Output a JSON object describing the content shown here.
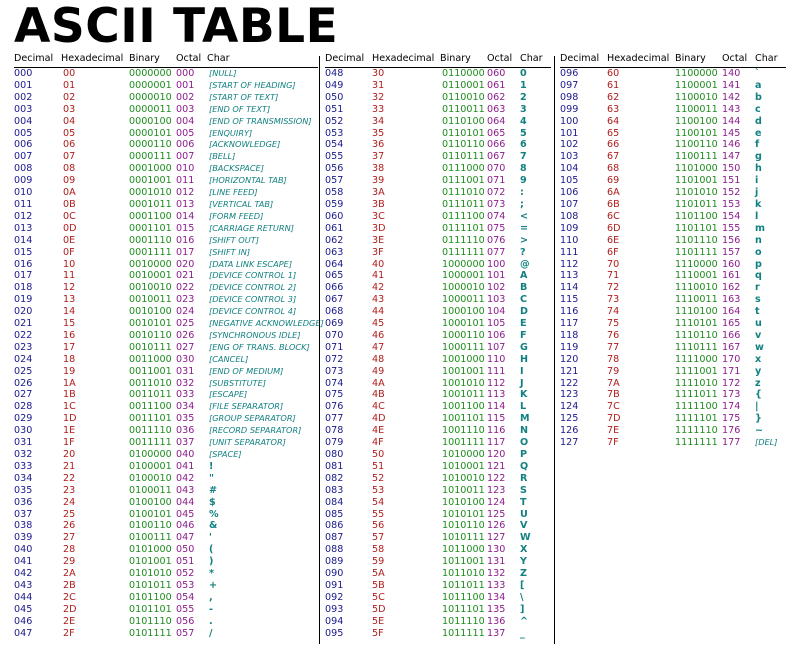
{
  "title": "ASCII TABLE",
  "headers": {
    "decimal": "Decimal",
    "hex": "Hexadecimal",
    "binary": "Binary",
    "octal": "Octal",
    "char": "Char"
  },
  "columns": [
    [
      [
        "000",
        "00",
        "0000000",
        "000",
        "[NULL]"
      ],
      [
        "001",
        "01",
        "0000001",
        "001",
        "[START OF HEADING]"
      ],
      [
        "002",
        "02",
        "0000010",
        "002",
        "[START OF TEXT]"
      ],
      [
        "003",
        "03",
        "0000011",
        "003",
        "[END OF TEXT]"
      ],
      [
        "004",
        "04",
        "0000100",
        "004",
        "[END OF TRANSMISSION]"
      ],
      [
        "005",
        "05",
        "0000101",
        "005",
        "[ENQUIRY]"
      ],
      [
        "006",
        "06",
        "0000110",
        "006",
        "[ACKNOWLEDGE]"
      ],
      [
        "007",
        "07",
        "0000111",
        "007",
        "[BELL]"
      ],
      [
        "008",
        "08",
        "0001000",
        "010",
        "[BACKSPACE]"
      ],
      [
        "009",
        "09",
        "0001001",
        "011",
        "[HORIZONTAL TAB]"
      ],
      [
        "010",
        "0A",
        "0001010",
        "012",
        "[LINE FEED]"
      ],
      [
        "011",
        "0B",
        "0001011",
        "013",
        "[VERTICAL TAB]"
      ],
      [
        "012",
        "0C",
        "0001100",
        "014",
        "[FORM FEED]"
      ],
      [
        "013",
        "0D",
        "0001101",
        "015",
        "[CARRIAGE RETURN]"
      ],
      [
        "014",
        "0E",
        "0001110",
        "016",
        "[SHIFT OUT]"
      ],
      [
        "015",
        "0F",
        "0001111",
        "017",
        "[SHIFT IN]"
      ],
      [
        "016",
        "10",
        "0010000",
        "020",
        "[DATA LINK ESCAPE]"
      ],
      [
        "017",
        "11",
        "0010001",
        "021",
        "[DEVICE CONTROL 1]"
      ],
      [
        "018",
        "12",
        "0010010",
        "022",
        "[DEVICE CONTROL 2]"
      ],
      [
        "019",
        "13",
        "0010011",
        "023",
        "[DEVICE CONTROL 3]"
      ],
      [
        "020",
        "14",
        "0010100",
        "024",
        "[DEVICE CONTROL 4]"
      ],
      [
        "021",
        "15",
        "0010101",
        "025",
        "[NEGATIVE ACKNOWLEDGE]"
      ],
      [
        "022",
        "16",
        "0010110",
        "026",
        "[SYNCHRONOUS IDLE]"
      ],
      [
        "023",
        "17",
        "0010111",
        "027",
        "[ENG OF TRANS. BLOCK]"
      ],
      [
        "024",
        "18",
        "0011000",
        "030",
        "[CANCEL]"
      ],
      [
        "025",
        "19",
        "0011001",
        "031",
        "[END OF MEDIUM]"
      ],
      [
        "026",
        "1A",
        "0011010",
        "032",
        "[SUBSTITUTE]"
      ],
      [
        "027",
        "1B",
        "0011011",
        "033",
        "[ESCAPE]"
      ],
      [
        "028",
        "1C",
        "0011100",
        "034",
        "[FILE SEPARATOR]"
      ],
      [
        "029",
        "1D",
        "0011101",
        "035",
        "[GROUP SEPARATOR]"
      ],
      [
        "030",
        "1E",
        "0011110",
        "036",
        "[RECORD SEPARATOR]"
      ],
      [
        "031",
        "1F",
        "0011111",
        "037",
        "[UNIT SEPARATOR]"
      ],
      [
        "032",
        "20",
        "0100000",
        "040",
        "[SPACE]"
      ],
      [
        "033",
        "21",
        "0100001",
        "041",
        "!"
      ],
      [
        "034",
        "22",
        "0100010",
        "042",
        "\""
      ],
      [
        "035",
        "23",
        "0100011",
        "043",
        "#"
      ],
      [
        "036",
        "24",
        "0100100",
        "044",
        "$"
      ],
      [
        "037",
        "25",
        "0100101",
        "045",
        "%"
      ],
      [
        "038",
        "26",
        "0100110",
        "046",
        "&"
      ],
      [
        "039",
        "27",
        "0100111",
        "047",
        "'"
      ],
      [
        "040",
        "28",
        "0101000",
        "050",
        "("
      ],
      [
        "041",
        "29",
        "0101001",
        "051",
        ")"
      ],
      [
        "042",
        "2A",
        "0101010",
        "052",
        "*"
      ],
      [
        "043",
        "2B",
        "0101011",
        "053",
        "+"
      ],
      [
        "044",
        "2C",
        "0101100",
        "054",
        ","
      ],
      [
        "045",
        "2D",
        "0101101",
        "055",
        "-"
      ],
      [
        "046",
        "2E",
        "0101110",
        "056",
        "."
      ],
      [
        "047",
        "2F",
        "0101111",
        "057",
        "/"
      ]
    ],
    [
      [
        "048",
        "30",
        "0110000",
        "060",
        "0"
      ],
      [
        "049",
        "31",
        "0110001",
        "061",
        "1"
      ],
      [
        "050",
        "32",
        "0110010",
        "062",
        "2"
      ],
      [
        "051",
        "33",
        "0110011",
        "063",
        "3"
      ],
      [
        "052",
        "34",
        "0110100",
        "064",
        "4"
      ],
      [
        "053",
        "35",
        "0110101",
        "065",
        "5"
      ],
      [
        "054",
        "36",
        "0110110",
        "066",
        "6"
      ],
      [
        "055",
        "37",
        "0110111",
        "067",
        "7"
      ],
      [
        "056",
        "38",
        "0111000",
        "070",
        "8"
      ],
      [
        "057",
        "39",
        "0111001",
        "071",
        "9"
      ],
      [
        "058",
        "3A",
        "0111010",
        "072",
        ":"
      ],
      [
        "059",
        "3B",
        "0111011",
        "073",
        ";"
      ],
      [
        "060",
        "3C",
        "0111100",
        "074",
        "<"
      ],
      [
        "061",
        "3D",
        "0111101",
        "075",
        "="
      ],
      [
        "062",
        "3E",
        "0111110",
        "076",
        ">"
      ],
      [
        "063",
        "3F",
        "0111111",
        "077",
        "?"
      ],
      [
        "064",
        "40",
        "1000000",
        "100",
        "@"
      ],
      [
        "065",
        "41",
        "1000001",
        "101",
        "A"
      ],
      [
        "066",
        "42",
        "1000010",
        "102",
        "B"
      ],
      [
        "067",
        "43",
        "1000011",
        "103",
        "C"
      ],
      [
        "068",
        "44",
        "1000100",
        "104",
        "D"
      ],
      [
        "069",
        "45",
        "1000101",
        "105",
        "E"
      ],
      [
        "070",
        "46",
        "1000110",
        "106",
        "F"
      ],
      [
        "071",
        "47",
        "1000111",
        "107",
        "G"
      ],
      [
        "072",
        "48",
        "1001000",
        "110",
        "H"
      ],
      [
        "073",
        "49",
        "1001001",
        "111",
        "I"
      ],
      [
        "074",
        "4A",
        "1001010",
        "112",
        "J"
      ],
      [
        "075",
        "4B",
        "1001011",
        "113",
        "K"
      ],
      [
        "076",
        "4C",
        "1001100",
        "114",
        "L"
      ],
      [
        "077",
        "4D",
        "1001101",
        "115",
        "M"
      ],
      [
        "078",
        "4E",
        "1001110",
        "116",
        "N"
      ],
      [
        "079",
        "4F",
        "1001111",
        "117",
        "O"
      ],
      [
        "080",
        "50",
        "1010000",
        "120",
        "P"
      ],
      [
        "081",
        "51",
        "1010001",
        "121",
        "Q"
      ],
      [
        "082",
        "52",
        "1010010",
        "122",
        "R"
      ],
      [
        "083",
        "53",
        "1010011",
        "123",
        "S"
      ],
      [
        "084",
        "54",
        "1010100",
        "124",
        "T"
      ],
      [
        "085",
        "55",
        "1010101",
        "125",
        "U"
      ],
      [
        "086",
        "56",
        "1010110",
        "126",
        "V"
      ],
      [
        "087",
        "57",
        "1010111",
        "127",
        "W"
      ],
      [
        "088",
        "58",
        "1011000",
        "130",
        "X"
      ],
      [
        "089",
        "59",
        "1011001",
        "131",
        "Y"
      ],
      [
        "090",
        "5A",
        "1011010",
        "132",
        "Z"
      ],
      [
        "091",
        "5B",
        "1011011",
        "133",
        "["
      ],
      [
        "092",
        "5C",
        "1011100",
        "134",
        "\\"
      ],
      [
        "093",
        "5D",
        "1011101",
        "135",
        "]"
      ],
      [
        "094",
        "5E",
        "1011110",
        "136",
        "^"
      ],
      [
        "095",
        "5F",
        "1011111",
        "137",
        "_"
      ]
    ],
    [
      [
        "096",
        "60",
        "1100000",
        "140",
        "`"
      ],
      [
        "097",
        "61",
        "1100001",
        "141",
        "a"
      ],
      [
        "098",
        "62",
        "1100010",
        "142",
        "b"
      ],
      [
        "099",
        "63",
        "1100011",
        "143",
        "c"
      ],
      [
        "100",
        "64",
        "1100100",
        "144",
        "d"
      ],
      [
        "101",
        "65",
        "1100101",
        "145",
        "e"
      ],
      [
        "102",
        "66",
        "1100110",
        "146",
        "f"
      ],
      [
        "103",
        "67",
        "1100111",
        "147",
        "g"
      ],
      [
        "104",
        "68",
        "1101000",
        "150",
        "h"
      ],
      [
        "105",
        "69",
        "1101001",
        "151",
        "i"
      ],
      [
        "106",
        "6A",
        "1101010",
        "152",
        "j"
      ],
      [
        "107",
        "6B",
        "1101011",
        "153",
        "k"
      ],
      [
        "108",
        "6C",
        "1101100",
        "154",
        "l"
      ],
      [
        "109",
        "6D",
        "1101101",
        "155",
        "m"
      ],
      [
        "110",
        "6E",
        "1101110",
        "156",
        "n"
      ],
      [
        "111",
        "6F",
        "1101111",
        "157",
        "o"
      ],
      [
        "112",
        "70",
        "1110000",
        "160",
        "p"
      ],
      [
        "113",
        "71",
        "1110001",
        "161",
        "q"
      ],
      [
        "114",
        "72",
        "1110010",
        "162",
        "r"
      ],
      [
        "115",
        "73",
        "1110011",
        "163",
        "s"
      ],
      [
        "116",
        "74",
        "1110100",
        "164",
        "t"
      ],
      [
        "117",
        "75",
        "1110101",
        "165",
        "u"
      ],
      [
        "118",
        "76",
        "1110110",
        "166",
        "v"
      ],
      [
        "119",
        "77",
        "1110111",
        "167",
        "w"
      ],
      [
        "120",
        "78",
        "1111000",
        "170",
        "x"
      ],
      [
        "121",
        "79",
        "1111001",
        "171",
        "y"
      ],
      [
        "122",
        "7A",
        "1111010",
        "172",
        "z"
      ],
      [
        "123",
        "7B",
        "1111011",
        "173",
        "{"
      ],
      [
        "124",
        "7C",
        "1111100",
        "174",
        "|"
      ],
      [
        "125",
        "7D",
        "1111101",
        "175",
        "}"
      ],
      [
        "126",
        "7E",
        "1111110",
        "176",
        "~"
      ],
      [
        "127",
        "7F",
        "1111111",
        "177",
        "[DEL]"
      ]
    ]
  ]
}
